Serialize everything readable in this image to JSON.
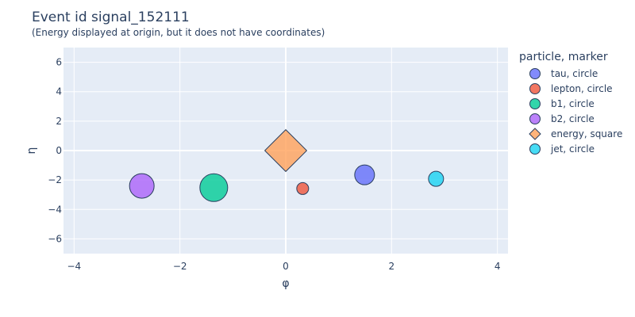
{
  "chart_data": {
    "type": "scatter",
    "title": "Event id signal_152111",
    "subtitle": "(Energy displayed at origin, but it does not have coordinates)",
    "xlabel": "φ",
    "ylabel": "η",
    "xlim": [
      -4.2,
      4.2
    ],
    "ylim": [
      -7,
      7
    ],
    "xticks": [
      -4,
      -2,
      0,
      2,
      4
    ],
    "yticks": [
      -6,
      -4,
      -2,
      0,
      2,
      4,
      6
    ],
    "grid": true,
    "legend_title": "particle, marker",
    "legend_position": "right",
    "series": [
      {
        "name": "tau, circle",
        "symbol": "circle",
        "color": "#636efa",
        "x": 1.49,
        "y": -1.65,
        "size": 1.0
      },
      {
        "name": "lepton, circle",
        "symbol": "circle",
        "color": "#ef553b",
        "x": 0.32,
        "y": -2.58,
        "size": 0.6
      },
      {
        "name": "b1, circle",
        "symbol": "circle",
        "color": "#00cc96",
        "x": -1.36,
        "y": -2.52,
        "size": 1.4
      },
      {
        "name": "b2, circle",
        "symbol": "circle",
        "color": "#ab63fa",
        "x": -2.72,
        "y": -2.4,
        "size": 1.24
      },
      {
        "name": "energy, square",
        "symbol": "diamond",
        "color": "#ffa15a",
        "x": 0.0,
        "y": 0.0,
        "size": 1.76
      },
      {
        "name": "jet, circle",
        "symbol": "circle",
        "color": "#19d3f3",
        "x": 2.84,
        "y": -1.92,
        "size": 0.76
      }
    ]
  }
}
